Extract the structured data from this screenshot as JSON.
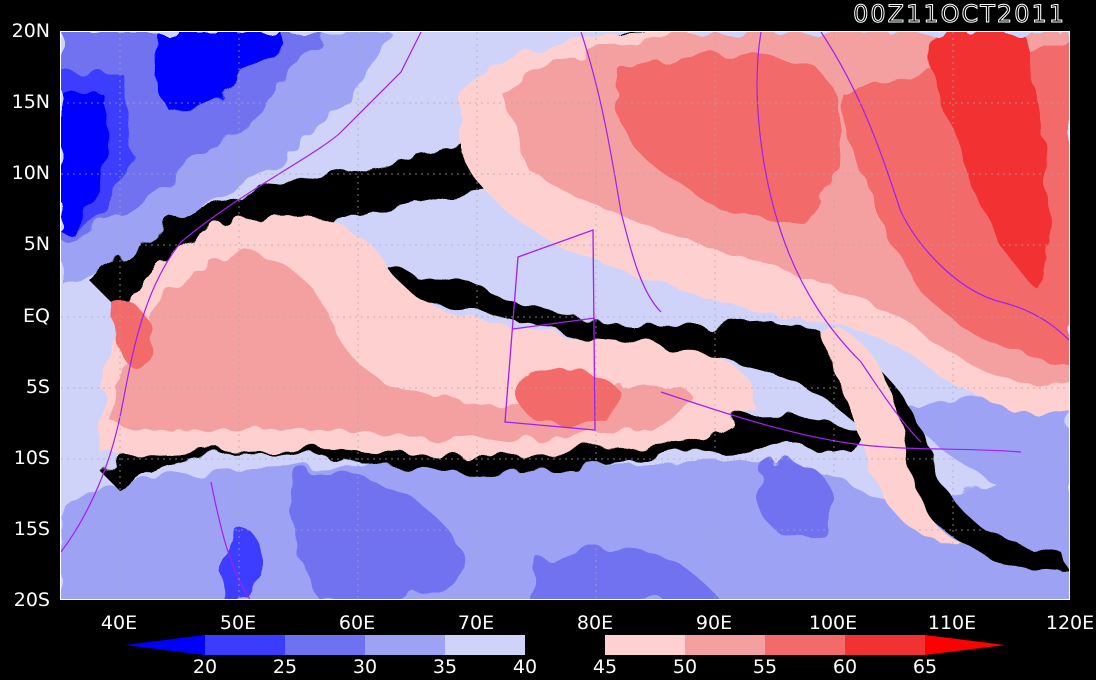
{
  "title": "00Z11OCT2011",
  "map": {
    "lat_labels": [
      "20N",
      "15N",
      "10N",
      "5N",
      "EQ",
      "5S",
      "10S",
      "15S",
      "20S"
    ],
    "lon_labels": [
      "40E",
      "50E",
      "60E",
      "70E",
      "80E",
      "90E",
      "100E",
      "110E",
      "120E"
    ],
    "extent": {
      "lon": [
        35,
        120
      ],
      "lat": [
        -20,
        20
      ]
    },
    "grid": "dotted",
    "colorbar": {
      "labels": [
        "20",
        "25",
        "30",
        "35",
        "40",
        "45",
        "50",
        "55",
        "60",
        "65"
      ],
      "colors": [
        "#0000ff",
        "#3c3cff",
        "#6f72f0",
        "#9ea2f5",
        "#cfd3fa",
        "#000000",
        "#ffd0d0",
        "#f4a0a0",
        "#f26a6a",
        "#f23232",
        "#ff0000"
      ]
    },
    "overlay_color": "#a020f0"
  }
}
